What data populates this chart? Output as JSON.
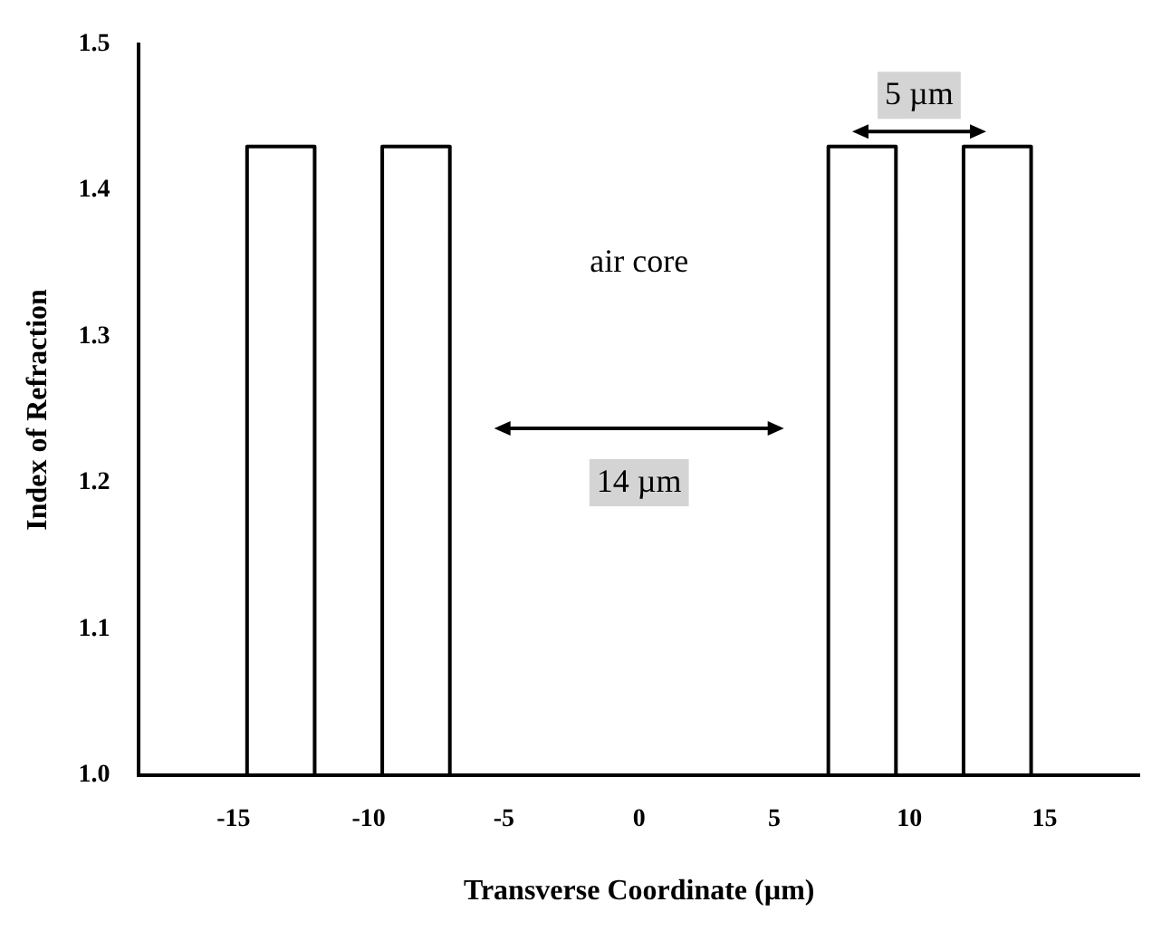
{
  "chart_data": {
    "type": "step",
    "xlabel": "Transverse Coordinate (µm)",
    "ylabel": "Index of Refraction",
    "x": [
      -18.5,
      -14.5,
      -12,
      -9.5,
      -7,
      7,
      9.5,
      12,
      14.5,
      18.5
    ],
    "values": [
      1,
      1.43,
      1,
      1.43,
      1,
      1.43,
      1,
      1.43,
      1,
      1
    ],
    "color": "#000000",
    "xlim": [
      -18.5,
      18.5
    ],
    "xticks": [
      -15,
      -10,
      -5,
      0,
      5,
      10,
      15
    ],
    "ylim": [
      1,
      1.5
    ],
    "yticks": [
      {
        "value": 1,
        "label": "1.0"
      },
      1.1,
      1.2,
      1.3,
      1.4,
      1.5
    ],
    "annotations": [
      "air core",
      "14 µm",
      "5 µm"
    ],
    "grid": false,
    "legend": false,
    "marker": "none",
    "line_style": "solid"
  }
}
